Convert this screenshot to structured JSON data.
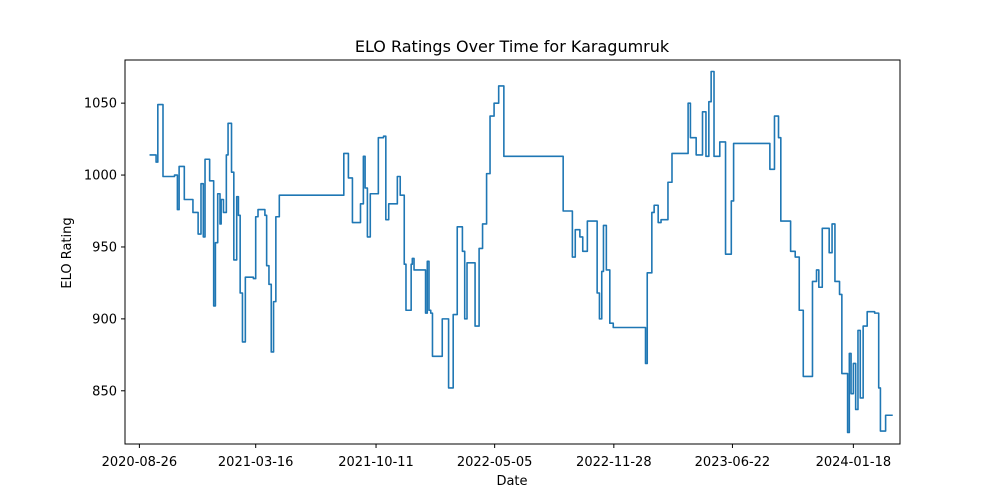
{
  "chart_data": {
    "type": "line",
    "title": "ELO Ratings Over Time for Karagumruk",
    "xlabel": "Date",
    "ylabel": "ELO Rating",
    "x_axis_kind": "date",
    "xlim": [
      "2020-08-01",
      "2024-04-08"
    ],
    "ylim": [
      813,
      1080
    ],
    "x_tick_labels": [
      "2020-08-26",
      "2021-03-16",
      "2021-10-11",
      "2022-05-05",
      "2022-11-28",
      "2023-06-22",
      "2024-01-18"
    ],
    "y_ticks": [
      850,
      900,
      950,
      1000,
      1050
    ],
    "grid": false,
    "line_color": "#1f77b4",
    "series": [
      {
        "step": true,
        "points": [
          [
            "2020-09-14",
            1014
          ],
          [
            "2020-09-24",
            1009
          ],
          [
            "2020-09-27",
            1049
          ],
          [
            "2020-10-06",
            999
          ],
          [
            "2020-10-26",
            1000
          ],
          [
            "2020-10-31",
            976
          ],
          [
            "2020-11-03",
            1006
          ],
          [
            "2020-11-12",
            983
          ],
          [
            "2020-11-27",
            974
          ],
          [
            "2020-12-06",
            959
          ],
          [
            "2020-12-11",
            994
          ],
          [
            "2020-12-15",
            957
          ],
          [
            "2020-12-18",
            1011
          ],
          [
            "2020-12-26",
            996
          ],
          [
            "2021-01-02",
            909
          ],
          [
            "2021-01-05",
            953
          ],
          [
            "2021-01-09",
            987
          ],
          [
            "2021-01-13",
            966
          ],
          [
            "2021-01-15",
            983
          ],
          [
            "2021-01-19",
            974
          ],
          [
            "2021-01-24",
            1014
          ],
          [
            "2021-01-27",
            1036
          ],
          [
            "2021-02-02",
            1002
          ],
          [
            "2021-02-06",
            941
          ],
          [
            "2021-02-11",
            985
          ],
          [
            "2021-02-14",
            972
          ],
          [
            "2021-02-17",
            918
          ],
          [
            "2021-02-21",
            884
          ],
          [
            "2021-02-26",
            929
          ],
          [
            "2021-03-12",
            928
          ],
          [
            "2021-03-16",
            971
          ],
          [
            "2021-03-20",
            976
          ],
          [
            "2021-04-01",
            972
          ],
          [
            "2021-04-04",
            937
          ],
          [
            "2021-04-08",
            924
          ],
          [
            "2021-04-12",
            877
          ],
          [
            "2021-04-16",
            912
          ],
          [
            "2021-04-20",
            971
          ],
          [
            "2021-04-26",
            986
          ],
          [
            "2021-08-16",
            1015
          ],
          [
            "2021-08-24",
            998
          ],
          [
            "2021-08-31",
            967
          ],
          [
            "2021-09-14",
            980
          ],
          [
            "2021-09-19",
            1013
          ],
          [
            "2021-09-22",
            991
          ],
          [
            "2021-09-26",
            957
          ],
          [
            "2021-10-01",
            987
          ],
          [
            "2021-10-15",
            1026
          ],
          [
            "2021-10-24",
            1027
          ],
          [
            "2021-10-28",
            969
          ],
          [
            "2021-11-02",
            980
          ],
          [
            "2021-11-17",
            999
          ],
          [
            "2021-11-22",
            986
          ],
          [
            "2021-11-29",
            938
          ],
          [
            "2021-12-02",
            906
          ],
          [
            "2021-12-11",
            938
          ],
          [
            "2021-12-13",
            942
          ],
          [
            "2021-12-16",
            934
          ],
          [
            "2022-01-05",
            904
          ],
          [
            "2022-01-08",
            940
          ],
          [
            "2022-01-11",
            906
          ],
          [
            "2022-01-14",
            904
          ],
          [
            "2022-01-17",
            874
          ],
          [
            "2022-02-03",
            900
          ],
          [
            "2022-02-14",
            852
          ],
          [
            "2022-02-22",
            903
          ],
          [
            "2022-03-01",
            964
          ],
          [
            "2022-03-10",
            947
          ],
          [
            "2022-03-14",
            900
          ],
          [
            "2022-03-18",
            939
          ],
          [
            "2022-03-26",
            939
          ],
          [
            "2022-04-01",
            895
          ],
          [
            "2022-04-08",
            949
          ],
          [
            "2022-04-14",
            966
          ],
          [
            "2022-04-21",
            1001
          ],
          [
            "2022-04-27",
            1041
          ],
          [
            "2022-05-04",
            1050
          ],
          [
            "2022-05-12",
            1062
          ],
          [
            "2022-05-21",
            1013
          ],
          [
            "2022-09-01",
            975
          ],
          [
            "2022-09-17",
            943
          ],
          [
            "2022-09-22",
            962
          ],
          [
            "2022-09-30",
            957
          ],
          [
            "2022-10-05",
            947
          ],
          [
            "2022-10-13",
            968
          ],
          [
            "2022-10-30",
            918
          ],
          [
            "2022-11-03",
            900
          ],
          [
            "2022-11-07",
            933
          ],
          [
            "2022-11-10",
            965
          ],
          [
            "2022-11-15",
            934
          ],
          [
            "2022-11-21",
            897
          ],
          [
            "2022-11-27",
            894
          ],
          [
            "2023-01-22",
            869
          ],
          [
            "2023-01-25",
            932
          ],
          [
            "2023-02-02",
            974
          ],
          [
            "2023-02-06",
            979
          ],
          [
            "2023-02-13",
            967
          ],
          [
            "2023-02-18",
            969
          ],
          [
            "2023-03-02",
            995
          ],
          [
            "2023-03-09",
            1015
          ],
          [
            "2023-04-06",
            1050
          ],
          [
            "2023-04-10",
            1026
          ],
          [
            "2023-04-20",
            1014
          ],
          [
            "2023-05-01",
            1044
          ],
          [
            "2023-05-07",
            1013
          ],
          [
            "2023-05-12",
            1051
          ],
          [
            "2023-05-16",
            1072
          ],
          [
            "2023-05-21",
            1013
          ],
          [
            "2023-05-31",
            1023
          ],
          [
            "2023-06-10",
            945
          ],
          [
            "2023-06-20",
            982
          ],
          [
            "2023-06-24",
            1022
          ],
          [
            "2023-08-26",
            1004
          ],
          [
            "2023-09-03",
            1041
          ],
          [
            "2023-09-10",
            1026
          ],
          [
            "2023-09-14",
            968
          ],
          [
            "2023-10-01",
            947
          ],
          [
            "2023-10-09",
            943
          ],
          [
            "2023-10-16",
            906
          ],
          [
            "2023-10-23",
            860
          ],
          [
            "2023-11-08",
            926
          ],
          [
            "2023-11-15",
            934
          ],
          [
            "2023-11-19",
            922
          ],
          [
            "2023-11-25",
            963
          ],
          [
            "2023-12-07",
            946
          ],
          [
            "2023-12-12",
            966
          ],
          [
            "2023-12-17",
            926
          ],
          [
            "2023-12-25",
            917
          ],
          [
            "2023-12-29",
            862
          ],
          [
            "2024-01-08",
            821
          ],
          [
            "2024-01-11",
            876
          ],
          [
            "2024-01-14",
            848
          ],
          [
            "2024-01-18",
            869
          ],
          [
            "2024-01-22",
            837
          ],
          [
            "2024-01-26",
            892
          ],
          [
            "2024-01-30",
            845
          ],
          [
            "2024-02-04",
            895
          ],
          [
            "2024-02-11",
            905
          ],
          [
            "2024-02-24",
            904
          ],
          [
            "2024-03-02",
            852
          ],
          [
            "2024-03-05",
            822
          ],
          [
            "2024-03-14",
            833
          ],
          [
            "2024-03-25",
            833
          ]
        ]
      }
    ]
  }
}
